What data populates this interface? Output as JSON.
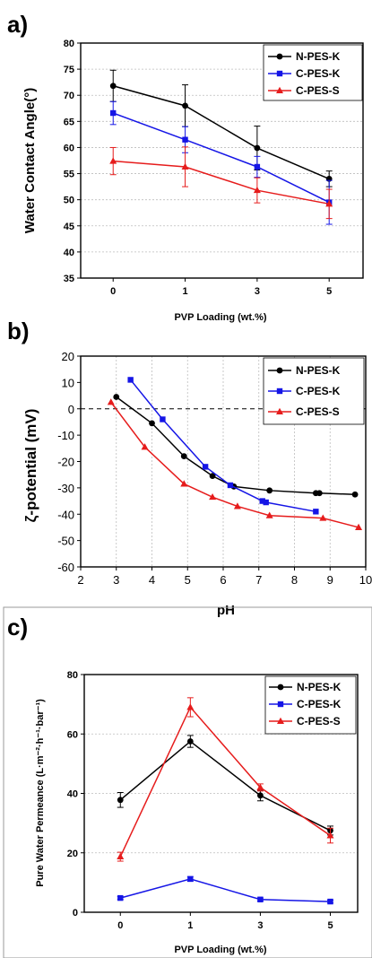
{
  "colors": {
    "N-PES-K": "#000000",
    "C-PES-K": "#1515e6",
    "C-PES-S": "#e61c1c"
  },
  "chart_data": [
    {
      "panel_label": "a)",
      "type": "line",
      "xlabel": "PVP Loading (wt.%)",
      "ylabel": "Water Contact Angle(°)",
      "categories": [
        "0",
        "1",
        "3",
        "5"
      ],
      "ylim": [
        35,
        80
      ],
      "yticks": [
        35,
        40,
        45,
        50,
        55,
        60,
        65,
        70,
        75,
        80
      ],
      "grid": "horizontal",
      "legend_position": "top-right",
      "series": [
        {
          "name": "N-PES-K",
          "marker": "circle",
          "values": [
            71.8,
            68.0,
            59.9,
            54.0
          ],
          "errors": [
            3.0,
            4.0,
            4.2,
            1.5
          ]
        },
        {
          "name": "C-PES-K",
          "marker": "square",
          "values": [
            66.6,
            61.5,
            56.3,
            49.5
          ],
          "errors": [
            2.2,
            2.5,
            2.0,
            4.2
          ]
        },
        {
          "name": "C-PES-S",
          "marker": "triangle",
          "values": [
            57.4,
            56.3,
            51.8,
            49.2
          ],
          "errors": [
            2.6,
            3.8,
            2.4,
            2.8
          ]
        }
      ]
    },
    {
      "panel_label": "b)",
      "type": "line",
      "xlabel": "pH",
      "ylabel": "ζ-potential (mV)",
      "xlim": [
        2,
        10
      ],
      "xticks": [
        2,
        3,
        4,
        5,
        6,
        7,
        8,
        9,
        10
      ],
      "ylim": [
        -60,
        20
      ],
      "yticks": [
        -60,
        -50,
        -40,
        -30,
        -20,
        -10,
        0,
        10,
        20
      ],
      "grid": "vertical",
      "zero_line": "dashed",
      "legend_position": "top-right",
      "series": [
        {
          "name": "N-PES-K",
          "marker": "circle",
          "points": [
            [
              3.0,
              4.5
            ],
            [
              4.0,
              -5.5
            ],
            [
              4.9,
              -18.0
            ],
            [
              5.7,
              -25.5
            ],
            [
              6.3,
              -29.5
            ],
            [
              7.3,
              -31.0
            ],
            [
              8.6,
              -32.0
            ],
            [
              8.7,
              -32.0
            ],
            [
              9.7,
              -32.5
            ]
          ]
        },
        {
          "name": "C-PES-K",
          "marker": "square",
          "points": [
            [
              3.4,
              11.0
            ],
            [
              4.3,
              -4.0
            ],
            [
              5.5,
              -22.0
            ],
            [
              6.2,
              -29.0
            ],
            [
              7.1,
              -35.0
            ],
            [
              7.2,
              -35.5
            ],
            [
              8.6,
              -39.0
            ]
          ]
        },
        {
          "name": "C-PES-S",
          "marker": "triangle",
          "points": [
            [
              2.85,
              2.5
            ],
            [
              3.8,
              -14.5
            ],
            [
              4.9,
              -28.5
            ],
            [
              5.7,
              -33.5
            ],
            [
              6.4,
              -37.0
            ],
            [
              7.3,
              -40.5
            ],
            [
              8.8,
              -41.5
            ],
            [
              9.8,
              -45.0
            ]
          ]
        }
      ]
    },
    {
      "panel_label": "c)",
      "type": "line",
      "xlabel": "PVP Loading (wt.%)",
      "ylabel": "Pure Water Permeance (L·m⁻²·h⁻¹·bar⁻¹)",
      "categories": [
        "0",
        "1",
        "3",
        "5"
      ],
      "ylim": [
        0,
        80
      ],
      "yticks": [
        0,
        20,
        40,
        60,
        80
      ],
      "grid": "horizontal",
      "legend_position": "top-right",
      "series": [
        {
          "name": "N-PES-K",
          "marker": "circle",
          "values": [
            37.8,
            57.5,
            39.3,
            27.5
          ],
          "errors": [
            2.5,
            2.0,
            1.8,
            1.5
          ]
        },
        {
          "name": "C-PES-K",
          "marker": "square",
          "values": [
            4.8,
            11.2,
            4.3,
            3.6
          ],
          "errors": [
            0.5,
            0.8,
            0.5,
            0.5
          ]
        },
        {
          "name": "C-PES-S",
          "marker": "triangle",
          "values": [
            18.7,
            69.0,
            42.0,
            25.8
          ],
          "errors": [
            1.5,
            3.2,
            1.2,
            2.5
          ]
        }
      ]
    }
  ]
}
